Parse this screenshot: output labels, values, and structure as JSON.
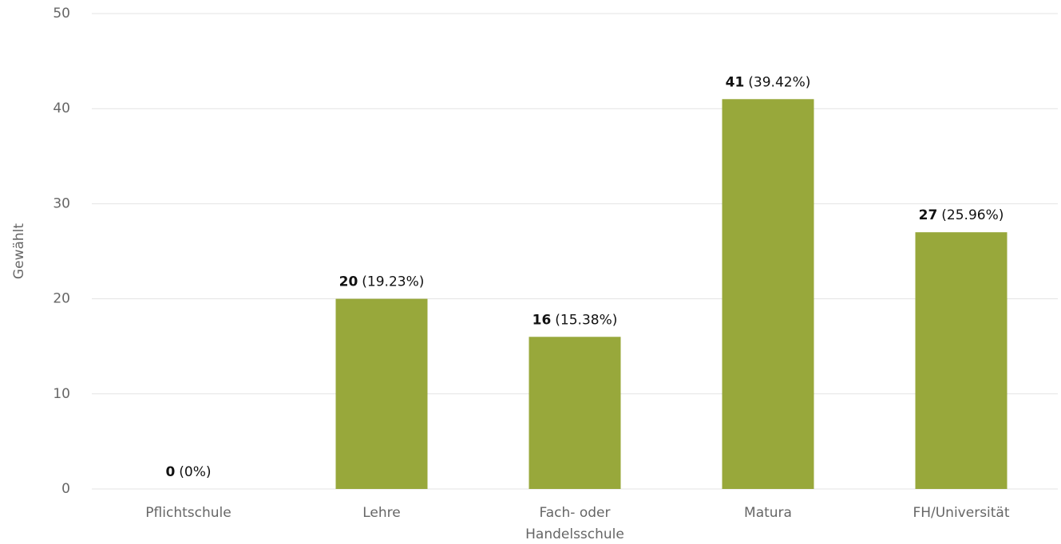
{
  "chart_data": {
    "type": "bar",
    "y_label": "Gewählt",
    "categories": [
      "Pflichtschule",
      "Lehre",
      "Fach- oder Handelsschule",
      "Matura",
      "FH/Universität"
    ],
    "values": [
      0,
      20,
      16,
      41,
      27
    ],
    "shares": [
      "(0%)",
      "(19.23%)",
      "(15.38%)",
      "(39.42%)",
      "(25.96%)"
    ],
    "color": "#98a83b",
    "ylim": [
      0,
      50
    ],
    "yticks": [
      0,
      10,
      20,
      30,
      40,
      50
    ],
    "grid": true
  }
}
